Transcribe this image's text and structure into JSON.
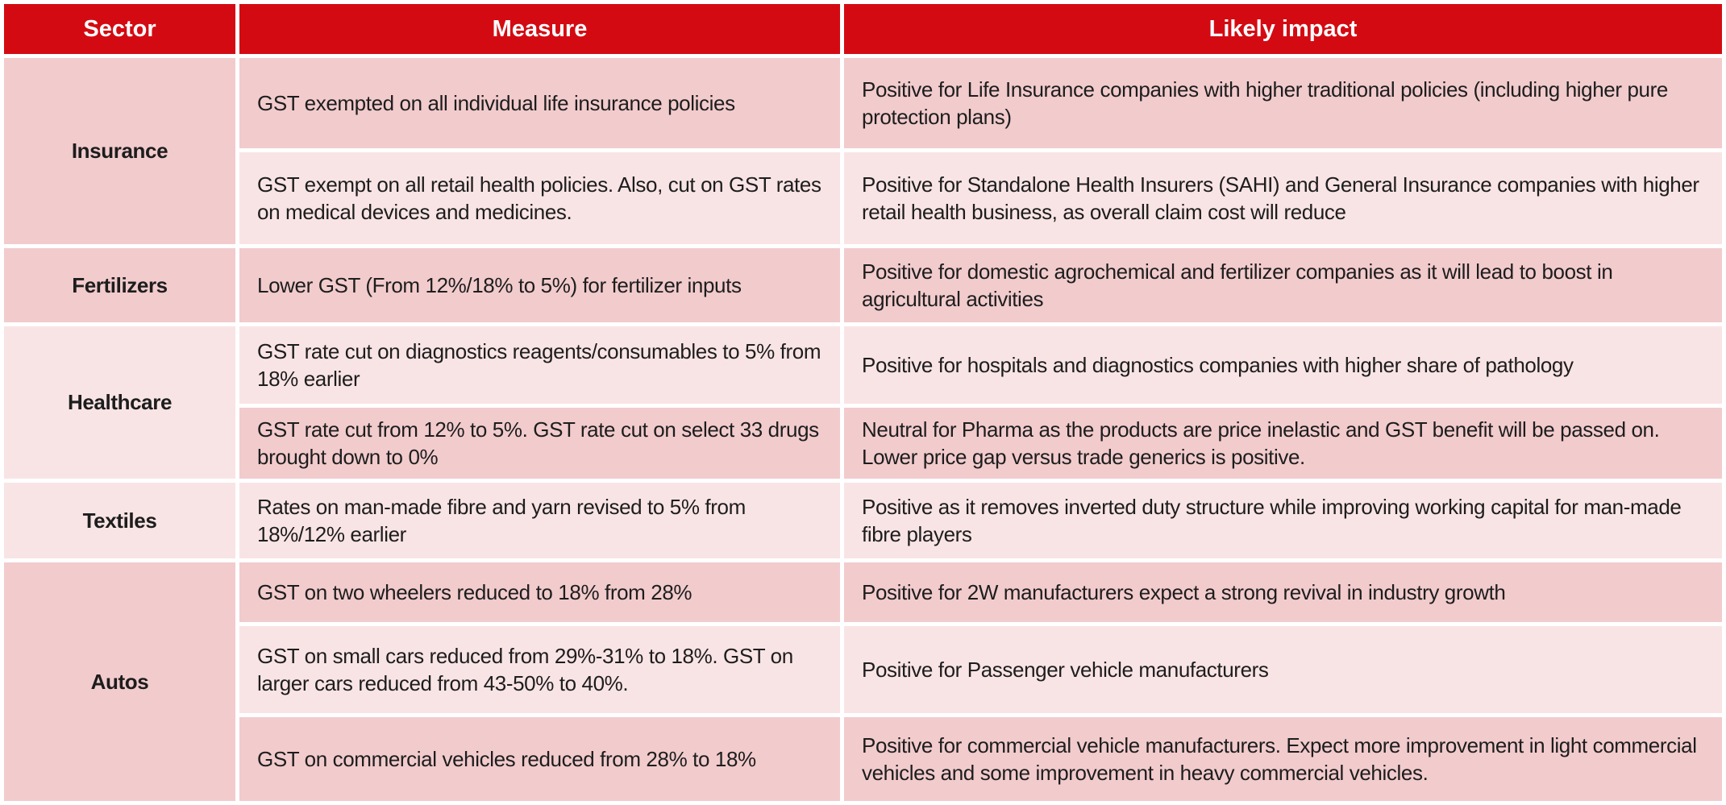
{
  "theme": {
    "header_bg": "#d40a12",
    "header_text": "#ffffff",
    "row_dark": "#f2cbcd",
    "row_light": "#f9e4e5",
    "body_text": "#1d1d1d",
    "sector_text": "#000000",
    "background": "#ffffff"
  },
  "table": {
    "headers": [
      "Sector",
      "Measure",
      "Likely impact"
    ],
    "groups": [
      {
        "sector": "Insurance",
        "rows": [
          {
            "measure": "GST exempted on all individual life insurance policies",
            "impact": "Positive for Life Insurance companies with higher traditional policies (including higher pure protection plans)",
            "shade": "dark"
          },
          {
            "measure": "GST exempt on all retail health policies. Also, cut on GST rates on medical devices and medicines.",
            "impact": "Positive for Standalone Health Insurers (SAHI) and General Insurance companies with higher retail health business, as overall claim cost will reduce",
            "shade": "light"
          }
        ]
      },
      {
        "sector": "Fertilizers",
        "rows": [
          {
            "measure": "Lower GST (From 12%/18% to 5%) for fertilizer inputs",
            "impact": "Positive for domestic agrochemical and fertilizer companies as it will lead to boost in agricultural activities",
            "shade": "dark"
          }
        ]
      },
      {
        "sector": "Healthcare",
        "rows": [
          {
            "measure": "GST rate cut on diagnostics reagents/consumables to 5% from 18% earlier",
            "impact": "Positive for hospitals and diagnostics companies with higher share of pathology",
            "shade": "light"
          },
          {
            "measure": "GST rate cut from 12% to 5%. GST rate cut on select 33 drugs brought down to 0%",
            "impact": "Neutral for Pharma as the products are price inelastic and GST benefit will be passed on. Lower price gap versus trade generics is positive.",
            "shade": "dark"
          }
        ]
      },
      {
        "sector": "Textiles",
        "rows": [
          {
            "measure": "Rates on man-made fibre and yarn revised to 5% from 18%/12% earlier",
            "impact": "Positive as it removes inverted duty structure while improving working capital for man-made fibre players",
            "shade": "light"
          }
        ]
      },
      {
        "sector": "Autos",
        "rows": [
          {
            "measure": "GST on two wheelers reduced to 18% from 28%",
            "impact": "Positive for 2W manufacturers expect a strong revival in industry growth",
            "shade": "dark"
          },
          {
            "measure": "GST on small cars reduced from 29%-31% to 18%. GST on larger cars reduced from 43-50% to 40%.",
            "impact": "Positive for Passenger vehicle manufacturers",
            "shade": "light"
          },
          {
            "measure": "GST on commercial vehicles reduced from 28% to 18%",
            "impact": "Positive for commercial vehicle manufacturers. Expect more improvement in light commercial vehicles and some improvement in heavy commercial vehicles.",
            "shade": "dark"
          }
        ]
      }
    ]
  },
  "chart_data": {
    "type": "table",
    "title": "",
    "columns": [
      "Sector",
      "Measure",
      "Likely impact"
    ],
    "rows": [
      [
        "Insurance",
        "GST exempted on all individual life insurance policies",
        "Positive for Life Insurance companies with higher traditional policies (including higher pure protection plans)"
      ],
      [
        "Insurance",
        "GST exempt on all retail health policies. Also, cut on GST rates on medical devices and medicines.",
        "Positive for Standalone Health Insurers (SAHI) and General Insurance companies with higher retail health business, as overall claim cost will reduce"
      ],
      [
        "Fertilizers",
        "Lower GST (From 12%/18% to 5%) for fertilizer inputs",
        "Positive for domestic agrochemical and fertilizer companies as it will lead to boost in agricultural activities"
      ],
      [
        "Healthcare",
        "GST rate cut on diagnostics reagents/consumables to 5% from 18% earlier",
        "Positive for hospitals and diagnostics companies with higher share of pathology"
      ],
      [
        "Healthcare",
        "GST rate cut from 12% to 5%. GST rate cut on select 33 drugs brought down to 0%",
        "Neutral for Pharma as the products are price inelastic and GST benefit will be passed on. Lower price gap versus trade generics is positive."
      ],
      [
        "Textiles",
        "Rates on man-made fibre and yarn revised to 5% from 18%/12% earlier",
        "Positive as it removes inverted duty structure while improving working capital for man-made fibre players"
      ],
      [
        "Autos",
        "GST on two wheelers reduced to 18% from 28%",
        "Positive for 2W manufacturers expect a strong revival in industry growth"
      ],
      [
        "Autos",
        "GST on small cars reduced from 29%-31% to 18%. GST on larger cars reduced from 43-50% to 40%.",
        "Positive for Passenger vehicle manufacturers"
      ],
      [
        "Autos",
        "GST on commercial vehicles reduced from 28% to 18%",
        "Positive for commercial vehicle manufacturers. Expect more improvement in light commercial vehicles and some improvement in heavy commercial vehicles."
      ]
    ]
  }
}
